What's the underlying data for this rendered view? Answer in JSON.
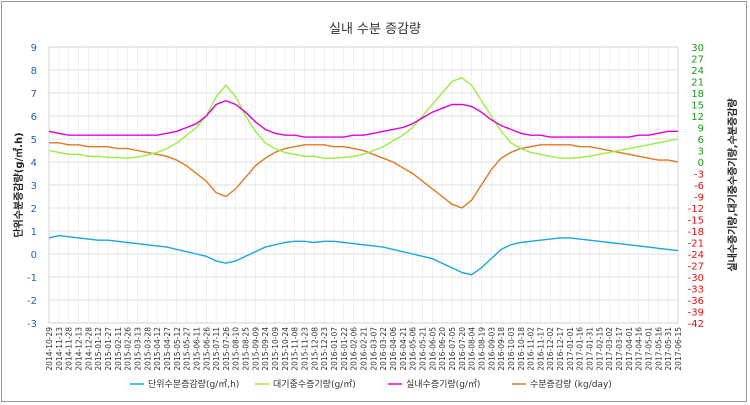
{
  "chart_data": {
    "type": "line",
    "title": "실내 수분 증감량",
    "ylabel_left": "단위수분증감량(g/㎡.h)",
    "ylabel_right": "실내수증기량,대기중수증기량,수분증감량",
    "ylim_left": [
      -3,
      9
    ],
    "ylim_right": [
      -42,
      30
    ],
    "yticks_left": [
      "9",
      "8",
      "7",
      "6",
      "5",
      "4",
      "3",
      "2",
      "1",
      "0",
      "-1",
      "-2",
      "-3"
    ],
    "yticks_right": [
      "30",
      "27",
      "24",
      "21",
      "18",
      "15",
      "12",
      "9",
      "6",
      "3",
      "0",
      "-3",
      "-6",
      "-9",
      "-12",
      "-15",
      "-18",
      "-21",
      "-24",
      "-27",
      "-30",
      "-33",
      "-36",
      "-39",
      "-42"
    ],
    "xticks": [
      "2014-10-29",
      "2014-11-13",
      "2014-11-28",
      "2014-12-13",
      "2014-12-28",
      "2015-01-12",
      "2015-01-27",
      "2015-02-11",
      "2015-02-26",
      "2015-03-13",
      "2015-03-28",
      "2015-04-12",
      "2015-04-27",
      "2015-05-12",
      "2015-05-27",
      "2015-06-11",
      "2015-06-26",
      "2015-07-11",
      "2015-07-26",
      "2015-08-10",
      "2015-08-25",
      "2015-09-09",
      "2015-09-24",
      "2015-10-09",
      "2015-10-24",
      "2015-11-08",
      "2015-11-23",
      "2015-12-08",
      "2015-12-23",
      "2016-01-07",
      "2016-01-22",
      "2016-02-06",
      "2016-02-21",
      "2016-03-07",
      "2016-03-22",
      "2016-04-06",
      "2016-04-21",
      "2016-05-06",
      "2016-05-21",
      "2016-06-05",
      "2016-06-20",
      "2016-07-05",
      "2016-07-20",
      "2016-08-04",
      "2016-08-19",
      "2016-09-03",
      "2016-09-18",
      "2016-10-03",
      "2016-10-18",
      "2016-11-02",
      "2016-11-17",
      "2016-12-02",
      "2016-12-17",
      "2017-01-01",
      "2017-01-16",
      "2017-01-31",
      "2017-02-15",
      "2017-03-02",
      "2017-03-17",
      "2017-04-01",
      "2017-04-16",
      "2017-05-01",
      "2017-05-16",
      "2017-05-31",
      "2017-06-15"
    ],
    "series": [
      {
        "name": "단위수분증감량(g/㎡,h)",
        "axis": "left",
        "color": "#1aa7e0",
        "values": [
          0.7,
          0.8,
          0.75,
          0.7,
          0.65,
          0.6,
          0.6,
          0.55,
          0.5,
          0.45,
          0.4,
          0.35,
          0.3,
          0.2,
          0.1,
          0.0,
          -0.1,
          -0.3,
          -0.4,
          -0.3,
          -0.1,
          0.1,
          0.3,
          0.4,
          0.5,
          0.55,
          0.55,
          0.5,
          0.55,
          0.55,
          0.5,
          0.45,
          0.4,
          0.35,
          0.3,
          0.2,
          0.1,
          0.0,
          -0.1,
          -0.2,
          -0.4,
          -0.6,
          -0.8,
          -0.9,
          -0.6,
          -0.2,
          0.2,
          0.4,
          0.5,
          0.55,
          0.6,
          0.65,
          0.7,
          0.7,
          0.65,
          0.6,
          0.55,
          0.5,
          0.45,
          0.4,
          0.35,
          0.3,
          0.25,
          0.2,
          0.15
        ]
      },
      {
        "name": "대기중수증기량(g/㎡)",
        "axis": "right",
        "color": "#99ee44",
        "values": [
          3.0,
          2.5,
          2.0,
          2.0,
          1.5,
          1.5,
          1.2,
          1.2,
          1.0,
          1.3,
          1.8,
          2.5,
          3.5,
          5.0,
          7.0,
          9.0,
          12.0,
          17.0,
          20.0,
          17.0,
          12.0,
          8.0,
          5.0,
          3.5,
          2.5,
          2.0,
          1.5,
          1.5,
          1.0,
          1.0,
          1.2,
          1.5,
          2.0,
          3.0,
          4.0,
          5.5,
          7.0,
          9.0,
          12.0,
          15.0,
          18.0,
          21.0,
          22.0,
          20.0,
          16.0,
          12.0,
          8.0,
          5.0,
          3.5,
          2.5,
          2.0,
          1.5,
          1.0,
          1.0,
          1.2,
          1.5,
          2.0,
          2.5,
          3.0,
          3.5,
          4.0,
          4.5,
          5.0,
          5.5,
          6.0
        ]
      },
      {
        "name": "실내수증기량(g/㎡)",
        "axis": "right",
        "color": "#e000e0",
        "values": [
          8.0,
          7.5,
          7.0,
          7.0,
          7.0,
          7.0,
          7.0,
          7.0,
          7.0,
          7.0,
          7.0,
          7.0,
          7.5,
          8.0,
          9.0,
          10.0,
          12.0,
          15.0,
          16.0,
          15.0,
          13.0,
          10.5,
          8.5,
          7.5,
          7.0,
          7.0,
          6.5,
          6.5,
          6.5,
          6.5,
          6.5,
          7.0,
          7.0,
          7.5,
          8.0,
          8.5,
          9.0,
          10.0,
          11.5,
          13.0,
          14.0,
          15.0,
          15.0,
          14.5,
          13.0,
          11.0,
          9.5,
          8.5,
          7.5,
          7.0,
          7.0,
          6.5,
          6.5,
          6.5,
          6.5,
          6.5,
          6.5,
          6.5,
          6.5,
          6.5,
          7.0,
          7.0,
          7.5,
          8.0,
          8.0
        ]
      },
      {
        "name": "수분증감량 (kg/day)",
        "axis": "right",
        "color": "#e07820",
        "values": [
          5.0,
          5.0,
          4.5,
          4.5,
          4.0,
          4.0,
          4.0,
          3.5,
          3.5,
          3.0,
          2.5,
          2.0,
          1.5,
          0.5,
          -1.0,
          -3.0,
          -5.0,
          -8.0,
          -9.0,
          -7.0,
          -4.0,
          -1.0,
          1.0,
          2.5,
          3.5,
          4.0,
          4.5,
          4.5,
          4.5,
          4.0,
          4.0,
          3.5,
          3.0,
          2.0,
          1.0,
          0.0,
          -1.5,
          -3.0,
          -5.0,
          -7.0,
          -9.0,
          -11.0,
          -12.0,
          -10.0,
          -6.0,
          -2.0,
          1.0,
          2.5,
          3.5,
          4.0,
          4.5,
          4.5,
          4.5,
          4.5,
          4.0,
          4.0,
          3.5,
          3.0,
          2.5,
          2.0,
          1.5,
          1.0,
          0.5,
          0.5,
          0.0
        ]
      }
    ]
  }
}
